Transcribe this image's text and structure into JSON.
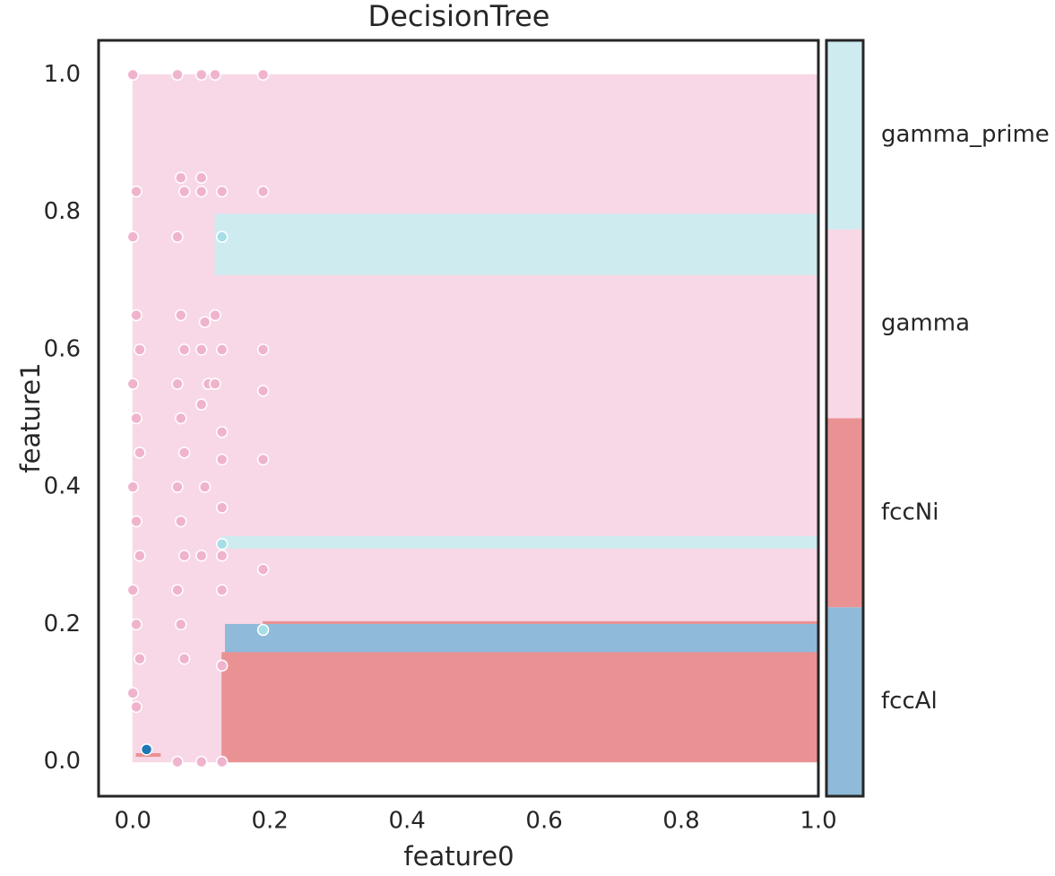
{
  "chart_data": {
    "type": "decision_regions",
    "title": "DecisionTree",
    "x_label": "feature0",
    "y_label": "feature1",
    "xlim": [
      -0.05,
      1.0
    ],
    "ylim": [
      -0.05,
      1.05
    ],
    "xticks": [
      {
        "value": 0,
        "label": "0.0"
      },
      0.2,
      0.4,
      0.6,
      0.8,
      {
        "value": 1,
        "label": "1.0"
      }
    ],
    "yticks": [
      {
        "value": 0,
        "label": "0.0"
      },
      0.2,
      0.4,
      0.6,
      0.8,
      {
        "value": 1,
        "label": "1.0"
      }
    ],
    "classes": [
      {
        "name": "fccAl",
        "color": "#8fbad9"
      },
      {
        "name": "fccNi",
        "color": "#ea9293"
      },
      {
        "name": "gamma",
        "color": "#f8d8e6"
      },
      {
        "name": "gamma_prime",
        "color": "#ceebf0"
      }
    ],
    "regions": [
      {
        "class": 2,
        "x0": 0,
        "x1": 1,
        "y0": 0,
        "y1": 1
      },
      {
        "class": 3,
        "x0": 0.12,
        "x1": 1,
        "y0": 0.709,
        "y1": 0.797
      },
      {
        "class": 3,
        "x0": 0.13,
        "x1": 1,
        "y0": 0.311,
        "y1": 0.328
      },
      {
        "class": 1,
        "x0": 0.19,
        "x1": 1,
        "y0": 0.2,
        "y1": 0.204
      },
      {
        "class": 0,
        "x0": 0.135,
        "x1": 1,
        "y0": 0.159,
        "y1": 0.2
      },
      {
        "class": 1,
        "x0": 0.13,
        "x1": 1,
        "y0": 0,
        "y1": 0.159
      },
      {
        "class": 1,
        "x0": 0.005,
        "x1": 0.04,
        "y0": 0.008,
        "y1": 0.012
      }
    ],
    "series": [
      {
        "name": "gamma",
        "color": "#f0b3cd",
        "x": [
          0,
          0.005,
          0,
          0.005,
          0.01,
          0,
          0.005,
          0.01,
          0,
          0.005,
          0.01,
          0,
          0.005,
          0.01,
          0,
          0.005,
          0.065,
          0.07,
          0.075,
          0.065,
          0.07,
          0.075,
          0.065,
          0.07,
          0.075,
          0.065,
          0.07,
          0.075,
          0.065,
          0.07,
          0.075,
          0.065,
          0.1,
          0.1,
          0.1,
          0.105,
          0.1,
          0.11,
          0.1,
          0.105,
          0.1,
          0.1,
          0.12,
          0.13,
          0.12,
          0.13,
          0.12,
          0.13,
          0.13,
          0.13,
          0.13,
          0.13,
          0.13,
          0.13,
          0.19,
          0.19,
          0.19,
          0.19,
          0.19,
          0.19
        ],
        "values": [
          1,
          0.83,
          0.764,
          0.65,
          0.6,
          0.55,
          0.5,
          0.45,
          0.4,
          0.35,
          0.3,
          0.25,
          0.2,
          0.15,
          0.1,
          0.08,
          1,
          0.85,
          0.83,
          0.764,
          0.65,
          0.6,
          0.55,
          0.5,
          0.45,
          0.4,
          0.35,
          0.3,
          0.25,
          0.2,
          0.15,
          0,
          1,
          0.85,
          0.83,
          0.64,
          0.6,
          0.55,
          0.52,
          0.4,
          0.3,
          0,
          1,
          0.83,
          0.65,
          0.6,
          0.55,
          0.48,
          0.44,
          0.37,
          0.3,
          0.25,
          0.14,
          0,
          1,
          0.83,
          0.6,
          0.54,
          0.44,
          0.28
        ]
      },
      {
        "name": "gamma_prime",
        "color": "#a6dde6",
        "x": [
          0.13,
          0.13,
          0.19
        ],
        "values": [
          0.764,
          0.317,
          0.192
        ]
      },
      {
        "name": "fccAl",
        "color": "#1f77b4",
        "x": [
          0.02
        ],
        "values": [
          0.018
        ]
      }
    ]
  }
}
